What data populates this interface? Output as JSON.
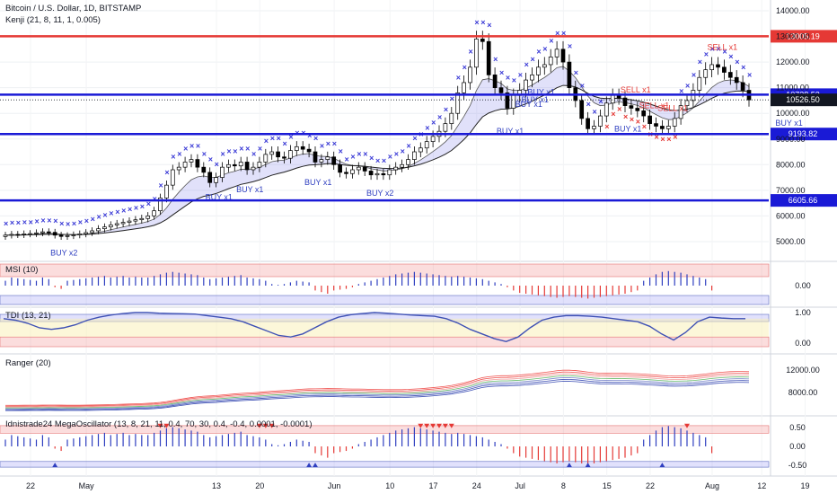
{
  "header": {
    "symbol": "Bitcoin / U.S. Dollar, 1D, BITSTAMP",
    "indicator": "Kenji (21, 8, 11, 1, 0.005)"
  },
  "colors": {
    "up": "#ffffff",
    "down": "#000000",
    "wick": "#000000",
    "cross": "#3b3bd6",
    "cross_sell": "#e53935",
    "signal": "#2f3fc0",
    "red_level": "#e53935",
    "blue_level": "#1a1ad6",
    "band_fill": "rgba(120,120,230,0.22)",
    "band_green": "rgba(110,200,140,0.25)",
    "band_pink": "rgba(240,140,150,0.25)",
    "pos_bar": "#2f3fc0",
    "neg_bar": "#e53935",
    "zone_red": "rgba(240,120,120,0.25)",
    "zone_blue": "rgba(120,120,240,0.22)",
    "zone_yellow": "rgba(250,240,180,0.5)"
  },
  "chart_data": [
    {
      "type": "candlestick",
      "title": "Bitcoin / U.S. Dollar, 1D, BITSTAMP",
      "ylim": [
        4200,
        14200
      ],
      "yticks": [
        "14000.00",
        "13000.00",
        "12000.00",
        "11000.00",
        "10000.00",
        "9000.00",
        "8000.00",
        "7000.00",
        "6000.00",
        "5000.00"
      ],
      "ytick_values": [
        14000,
        13000,
        12000,
        11000,
        10000,
        9000,
        8000,
        7000,
        6000,
        5000
      ],
      "x_labels": [
        "22",
        "May",
        "13",
        "20",
        "Jun",
        "10",
        "17",
        "24",
        "Jul",
        "8",
        "15",
        "22",
        "Aug",
        "12",
        "19"
      ],
      "x_label_days": [
        0,
        9,
        30,
        37,
        49,
        58,
        65,
        72,
        79,
        86,
        93,
        100,
        110,
        118,
        125
      ],
      "levels": [
        {
          "label": "13005.19",
          "value": 13005.19,
          "color": "#e53935"
        },
        {
          "label": "10728.53",
          "value": 10728.53,
          "color": "#1a1ad6"
        },
        {
          "label": "9193.82",
          "value": 9193.82,
          "color": "#1a1ad6"
        },
        {
          "label": "6605.66",
          "value": 6605.66,
          "color": "#1a1ad6"
        }
      ],
      "last_price": {
        "label": "10526.50",
        "value": 10526.5
      },
      "closes": [
        5250,
        5280,
        5270,
        5300,
        5310,
        5340,
        5380,
        5360,
        5250,
        5200,
        5230,
        5260,
        5300,
        5350,
        5420,
        5500,
        5570,
        5650,
        5700,
        5750,
        5800,
        5850,
        5900,
        6000,
        6200,
        6700,
        7200,
        7800,
        7900,
        8100,
        8200,
        7900,
        7700,
        7300,
        7500,
        7900,
        8000,
        7950,
        8100,
        7800,
        7900,
        8100,
        8400,
        8500,
        8300,
        8250,
        8550,
        8700,
        8600,
        8500,
        8100,
        8200,
        8300,
        8000,
        7700,
        7650,
        7800,
        7900,
        7750,
        7600,
        7650,
        7600,
        7800,
        7900,
        8000,
        8200,
        8500,
        8650,
        8900,
        9100,
        9300,
        9600,
        10000,
        10800,
        11200,
        11800,
        12900,
        12800,
        11500,
        11000,
        10800,
        10200,
        10700,
        10900,
        11300,
        11500,
        11800,
        11900,
        12200,
        12500,
        12000,
        11000,
        10500,
        9800,
        9400,
        9500,
        9900,
        10400,
        10700,
        10600,
        10300,
        10200,
        10100,
        9900,
        9600,
        9500,
        9400,
        9500,
        9800,
        10300,
        10500,
        10900,
        11400,
        11700,
        11900,
        11800,
        11600,
        11400,
        11200,
        10900,
        10526
      ],
      "signals": [
        {
          "text": "BUY x2",
          "day": 9
        },
        {
          "text": "BUY x1",
          "day": 34
        },
        {
          "text": "BUY x1",
          "day": 39
        },
        {
          "text": "BUY x1",
          "day": 50
        },
        {
          "text": "BUY x2",
          "day": 60
        },
        {
          "text": "BUY x1",
          "day": 81
        },
        {
          "text": "BUY x1",
          "day": 84
        },
        {
          "text": "BUY x1",
          "day": 85
        },
        {
          "text": "BUY x1",
          "day": 86
        },
        {
          "text": "BUY x1",
          "day": 100
        },
        {
          "text": "BUY x1",
          "day": 126
        },
        {
          "text": "SELL x1",
          "day": 101
        },
        {
          "text": "SELL x1",
          "day": 104
        },
        {
          "text": "SELL x1",
          "day": 107
        },
        {
          "text": "SELL x1",
          "day": 115
        }
      ]
    },
    {
      "type": "bar",
      "title": "MSI (10)",
      "ylim": [
        -1,
        1
      ],
      "yticks": [
        "0.00"
      ],
      "values": [
        0.3,
        0.5,
        0.45,
        0.4,
        0.35,
        0.3,
        0.5,
        0.4,
        -0.1,
        -0.2,
        0.3,
        0.35,
        0.4,
        0.45,
        0.5,
        0.55,
        0.6,
        0.5,
        0.55,
        0.6,
        0.5,
        0.55,
        0.5,
        0.5,
        0.6,
        0.7,
        0.8,
        0.85,
        0.8,
        0.75,
        0.7,
        0.65,
        0.5,
        0.4,
        0.45,
        0.5,
        0.55,
        0.6,
        0.65,
        0.5,
        0.45,
        0.4,
        0.3,
        0.1,
        0.05,
        0.1,
        0.2,
        0.3,
        0.25,
        0.2,
        -0.3,
        -0.4,
        -0.5,
        -0.3,
        -0.25,
        -0.2,
        -0.1,
        0.1,
        0.2,
        0.3,
        0.4,
        0.5,
        0.6,
        0.7,
        0.75,
        0.8,
        0.85,
        0.8,
        0.75,
        0.7,
        0.65,
        0.6,
        0.55,
        0.6,
        0.55,
        0.5,
        0.45,
        0.4,
        0.3,
        0.2,
        0.1,
        -0.1,
        -0.3,
        -0.45,
        -0.5,
        -0.55,
        -0.6,
        -0.65,
        -0.7,
        -0.75,
        -0.7,
        -0.65,
        -0.7,
        -0.75,
        -0.8,
        -0.75,
        -0.7,
        -0.65,
        -0.6,
        -0.55,
        -0.5,
        -0.4,
        -0.3,
        0.3,
        0.5,
        0.7,
        0.85,
        0.9,
        0.85,
        0.8,
        0.7,
        0.6,
        0.5,
        0.4,
        -0.3
      ]
    },
    {
      "type": "line",
      "title": "TDI (13, 21)",
      "ylim": [
        -0.3,
        1.05
      ],
      "yticks": [
        "1.00",
        "0.00"
      ],
      "series": [
        {
          "values": [
            0.8,
            0.75,
            0.65,
            0.5,
            0.45,
            0.5,
            0.6,
            0.75,
            0.85,
            0.92,
            0.97,
            1.0,
            1.0,
            0.98,
            0.97,
            0.96,
            0.95,
            0.9,
            0.85,
            0.8,
            0.7,
            0.55,
            0.4,
            0.25,
            0.2,
            0.3,
            0.5,
            0.7,
            0.85,
            0.93,
            0.97,
            1.0,
            0.98,
            0.95,
            0.92,
            0.9,
            0.88,
            0.8,
            0.65,
            0.45,
            0.3,
            0.15,
            0.05,
            0.2,
            0.5,
            0.75,
            0.85,
            0.9,
            0.9,
            0.88,
            0.85,
            0.8,
            0.75,
            0.7,
            0.55,
            0.3,
            0.1,
            0.35,
            0.7,
            0.85,
            0.82,
            0.8,
            0.8
          ]
        }
      ]
    },
    {
      "type": "line",
      "title": "Ranger (20)",
      "yticks": [
        "12000.00",
        "8000.00"
      ],
      "ytick_values": [
        12000,
        8000
      ],
      "ylim": [
        5000,
        14000
      ]
    },
    {
      "type": "bar",
      "title": "Idnistrade24 MegaOscillator (13, 8, 21, 11, 0.4, 70, 30, 0.4, -0.4, 0.0001, -0.0001)",
      "ylim": [
        -0.7,
        0.7
      ],
      "yticks": [
        "0.50",
        "0.00",
        "-0.50"
      ],
      "ytick_values": [
        0.5,
        0,
        -0.5
      ]
    }
  ]
}
